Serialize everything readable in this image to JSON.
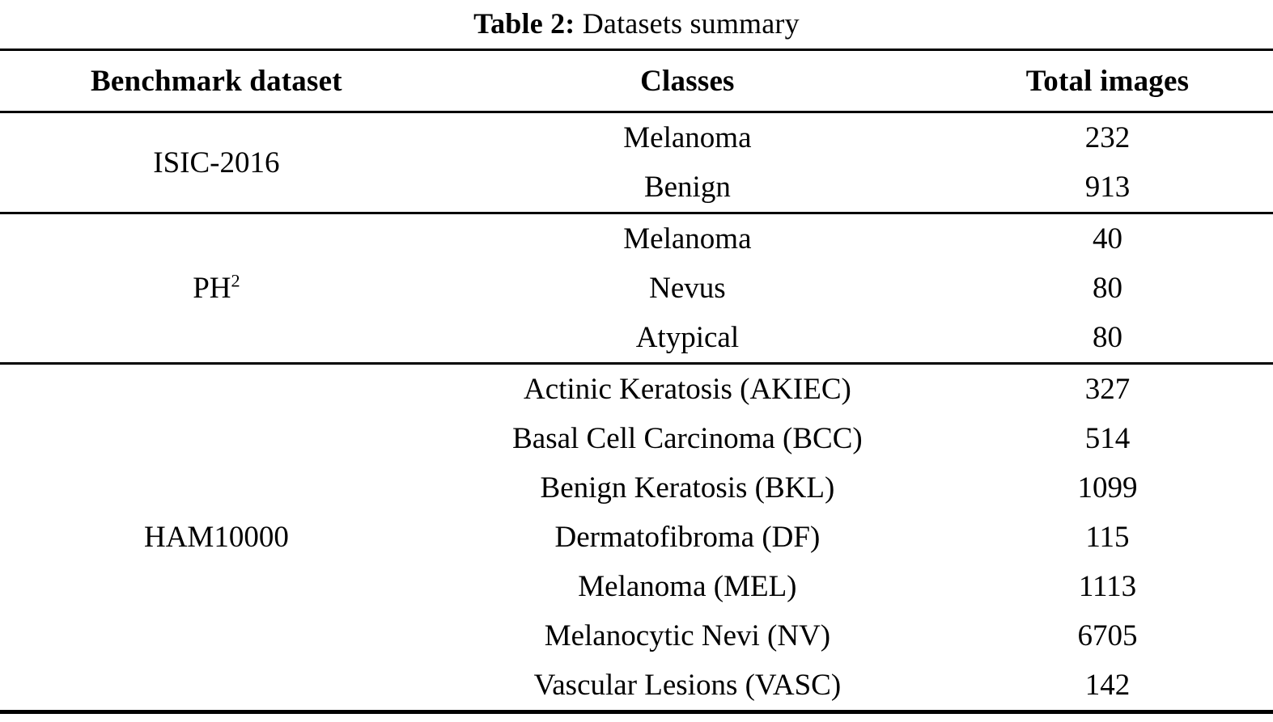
{
  "title": {
    "label": "Table 2:",
    "text": "Datasets summary"
  },
  "table": {
    "headers": [
      "Benchmark dataset",
      "Classes",
      "Total images"
    ],
    "groups": [
      {
        "dataset": "ISIC-2016",
        "rows": [
          {
            "class": "Melanoma",
            "images": "232"
          },
          {
            "class": "Benign",
            "images": "913"
          }
        ]
      },
      {
        "dataset": "PH",
        "dataset_sup": "2",
        "rows": [
          {
            "class": "Melanoma",
            "images": "40"
          },
          {
            "class": "Nevus",
            "images": "80"
          },
          {
            "class": "Atypical",
            "images": "80"
          }
        ]
      },
      {
        "dataset": "HAM10000",
        "rows": [
          {
            "class": "Actinic Keratosis (AKIEC)",
            "images": "327"
          },
          {
            "class": "Basal Cell Carcinoma (BCC)",
            "images": "514"
          },
          {
            "class": "Benign Keratosis (BKL)",
            "images": "1099"
          },
          {
            "class": "Dermatofibroma (DF)",
            "images": "115"
          },
          {
            "class": "Melanoma (MEL)",
            "images": "1113"
          },
          {
            "class": "Melanocytic Nevi (NV)",
            "images": "6705"
          },
          {
            "class": "Vascular Lesions (VASC)",
            "images": "142"
          }
        ]
      }
    ]
  },
  "chart_data": {
    "type": "table",
    "title": "Table 2: Datasets summary",
    "columns": [
      "Benchmark dataset",
      "Classes",
      "Total images"
    ],
    "rows": [
      [
        "ISIC-2016",
        "Melanoma",
        232
      ],
      [
        "ISIC-2016",
        "Benign",
        913
      ],
      [
        "PH2",
        "Melanoma",
        40
      ],
      [
        "PH2",
        "Nevus",
        80
      ],
      [
        "PH2",
        "Atypical",
        80
      ],
      [
        "HAM10000",
        "Actinic Keratosis (AKIEC)",
        327
      ],
      [
        "HAM10000",
        "Basal Cell Carcinoma (BCC)",
        514
      ],
      [
        "HAM10000",
        "Benign Keratosis (BKL)",
        1099
      ],
      [
        "HAM10000",
        "Dermatofibroma (DF)",
        115
      ],
      [
        "HAM10000",
        "Melanoma (MEL)",
        1113
      ],
      [
        "HAM10000",
        "Melanocytic Nevi (NV)",
        6705
      ],
      [
        "HAM10000",
        "Vascular Lesions (VASC)",
        142
      ]
    ]
  }
}
